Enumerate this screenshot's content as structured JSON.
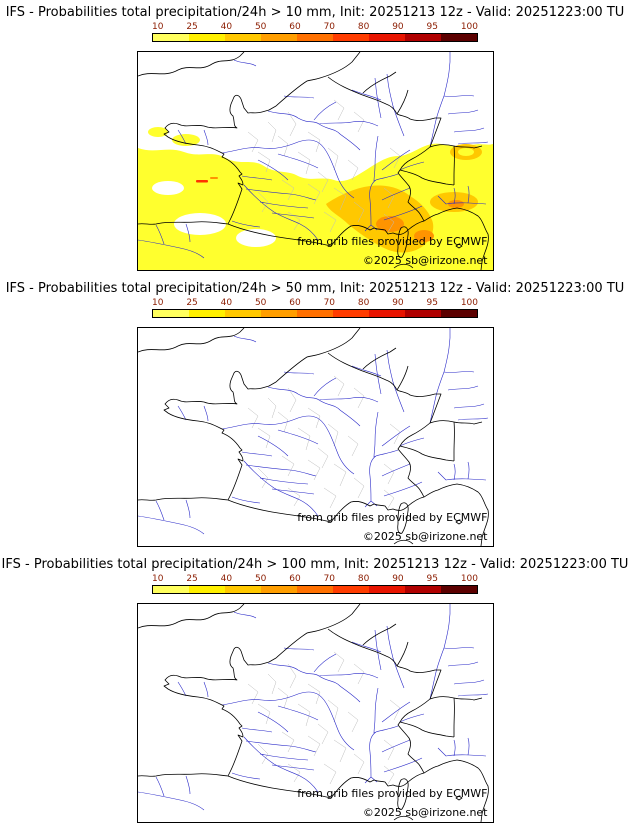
{
  "colorbar": {
    "ticks": [
      "10",
      "25",
      "40",
      "50",
      "60",
      "70",
      "80",
      "90",
      "95",
      "100"
    ],
    "segment_colors": [
      "#ffff5e",
      "#fff000",
      "#ffc800",
      "#ff9e00",
      "#ff7000",
      "#ff3c00",
      "#e81400",
      "#b00000",
      "#5c0000"
    ],
    "tick_label_color": "#8b1c00"
  },
  "map": {
    "border_color": "#000000",
    "river_color": "#2929c8",
    "department_boundary_color": "#bdbdbd",
    "precip_colors": {
      "low": "#ffff2e",
      "mid": "#ffc800",
      "high": "#ff9400",
      "extreme": "#ff3200"
    }
  },
  "panels": [
    {
      "id": "gt-10mm",
      "title": "IFS - Probabilities total precipitation/24h > 10 mm, Init: 20251213 12z - Valid: 20251223:00 TU",
      "attribution": "from grib files provided by ECMWF",
      "copyright": "©2025 sb@irizone.net",
      "shows_probability_shading": true
    },
    {
      "id": "gt-50mm",
      "title": "IFS - Probabilities total precipitation/24h > 50 mm, Init: 20251213 12z - Valid: 20251223:00 TU",
      "attribution": "from grib files provided by ECMWF",
      "copyright": "©2025 sb@irizone.net",
      "shows_probability_shading": false
    },
    {
      "id": "gt-100mm",
      "title": "IFS - Probabilities total precipitation/24h > 100 mm, Init: 20251213 12z - Valid: 20251223:00 TU",
      "attribution": "from grib files provided by ECMWF",
      "copyright": "©2025 sb@irizone.net",
      "shows_probability_shading": false
    }
  ]
}
